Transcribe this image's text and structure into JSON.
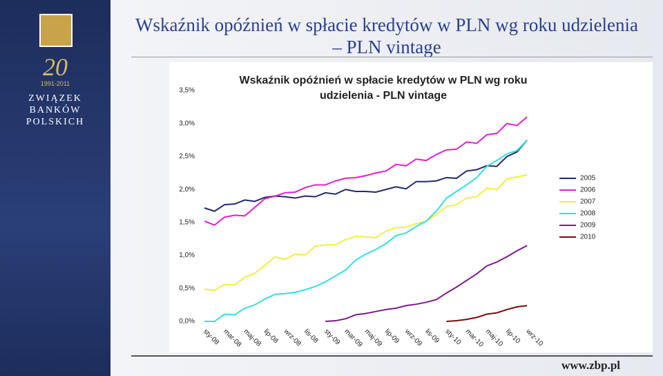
{
  "slide": {
    "title": "Wskaźnik opóźnień w spłacie kredytów w PLN wg roku udzielenia – PLN vintage",
    "logo_years": "1991-2011",
    "logo_number": "20",
    "org_lines": [
      "Związek",
      "Banków",
      "Polskich"
    ],
    "footer": "www.zbp.pl"
  },
  "chart_data": {
    "type": "line",
    "title": "Wskaźnik opóźnień w spłacie kredytów w PLN wg roku udzielenia - PLN vintage",
    "categories": [
      "sty-08",
      null,
      "mar-08",
      null,
      "maj-08",
      null,
      "lip-08",
      null,
      "wrz-08",
      null,
      "lis-08",
      null,
      "sty-09",
      null,
      "mar-09",
      null,
      "maj-09",
      null,
      "lip-09",
      null,
      "wrz-09",
      null,
      "lis-09",
      null,
      "sty-10",
      null,
      "mar-10",
      null,
      "maj-10",
      null,
      "lip-10",
      null,
      "wrz-10"
    ],
    "ylim": [
      0,
      3.5
    ],
    "yticks": [
      {
        "value": 0,
        "label": "0,0%"
      },
      {
        "value": 0.5,
        "label": "0,5%"
      },
      {
        "value": 1,
        "label": "1,0%"
      },
      {
        "value": 1.5,
        "label": "1,5%"
      },
      {
        "value": 2,
        "label": "2,0%"
      },
      {
        "value": 2.5,
        "label": "2,5%"
      },
      {
        "value": 3,
        "label": "3,0%"
      },
      {
        "value": 3.5,
        "label": "3,5%"
      }
    ],
    "grid": false,
    "legend": "right",
    "series": [
      {
        "name": "2005",
        "color": "#1f2a6b",
        "values": [
          1.72,
          1.67,
          1.77,
          1.78,
          1.84,
          1.82,
          1.88,
          1.9,
          1.89,
          1.87,
          1.9,
          1.89,
          1.95,
          1.93,
          2.0,
          1.97,
          1.97,
          1.96,
          2.0,
          2.04,
          2.01,
          2.12,
          2.12,
          2.13,
          2.18,
          2.17,
          2.28,
          2.3,
          2.36,
          2.35,
          2.5,
          2.57,
          2.75
        ]
      },
      {
        "name": "2006",
        "color": "#e020d0",
        "values": [
          1.52,
          1.46,
          1.58,
          1.61,
          1.6,
          1.73,
          1.86,
          1.9,
          1.95,
          1.96,
          2.03,
          2.07,
          2.07,
          2.13,
          2.17,
          2.18,
          2.21,
          2.25,
          2.28,
          2.38,
          2.36,
          2.46,
          2.44,
          2.53,
          2.6,
          2.61,
          2.72,
          2.7,
          2.83,
          2.85,
          3.0,
          2.97,
          3.1
        ]
      },
      {
        "name": "2007",
        "color": "#f0f040",
        "values": [
          0.49,
          0.47,
          0.56,
          0.55,
          0.67,
          0.73,
          0.85,
          0.98,
          0.94,
          1.02,
          1.01,
          1.14,
          1.16,
          1.16,
          1.24,
          1.29,
          1.28,
          1.27,
          1.37,
          1.42,
          1.43,
          1.48,
          1.52,
          1.62,
          1.74,
          1.77,
          1.87,
          1.89,
          2.02,
          2.0,
          2.16,
          2.19,
          2.22
        ]
      },
      {
        "name": "2008",
        "color": "#30e0e0",
        "values": [
          0.0,
          0.0,
          0.11,
          0.1,
          0.2,
          0.25,
          0.34,
          0.41,
          0.42,
          0.44,
          0.48,
          0.53,
          0.6,
          0.69,
          0.78,
          0.93,
          1.02,
          1.09,
          1.18,
          1.3,
          1.34,
          1.44,
          1.52,
          1.67,
          1.87,
          1.97,
          2.07,
          2.18,
          2.35,
          2.44,
          2.54,
          2.59,
          2.75
        ]
      },
      {
        "name": "2009",
        "color": "#7a1a8a",
        "values": [
          null,
          null,
          null,
          null,
          null,
          null,
          null,
          null,
          null,
          null,
          null,
          null,
          0.0,
          0.01,
          0.04,
          0.1,
          0.12,
          0.15,
          0.18,
          0.2,
          0.24,
          0.26,
          0.29,
          0.33,
          0.43,
          0.52,
          0.62,
          0.72,
          0.84,
          0.9,
          0.98,
          1.07,
          1.15
        ]
      },
      {
        "name": "2010",
        "color": "#7a0a10",
        "values": [
          null,
          null,
          null,
          null,
          null,
          null,
          null,
          null,
          null,
          null,
          null,
          null,
          null,
          null,
          null,
          null,
          null,
          null,
          null,
          null,
          null,
          null,
          null,
          null,
          0.0,
          0.01,
          0.03,
          0.06,
          0.11,
          0.13,
          0.18,
          0.22,
          0.24
        ]
      }
    ]
  }
}
